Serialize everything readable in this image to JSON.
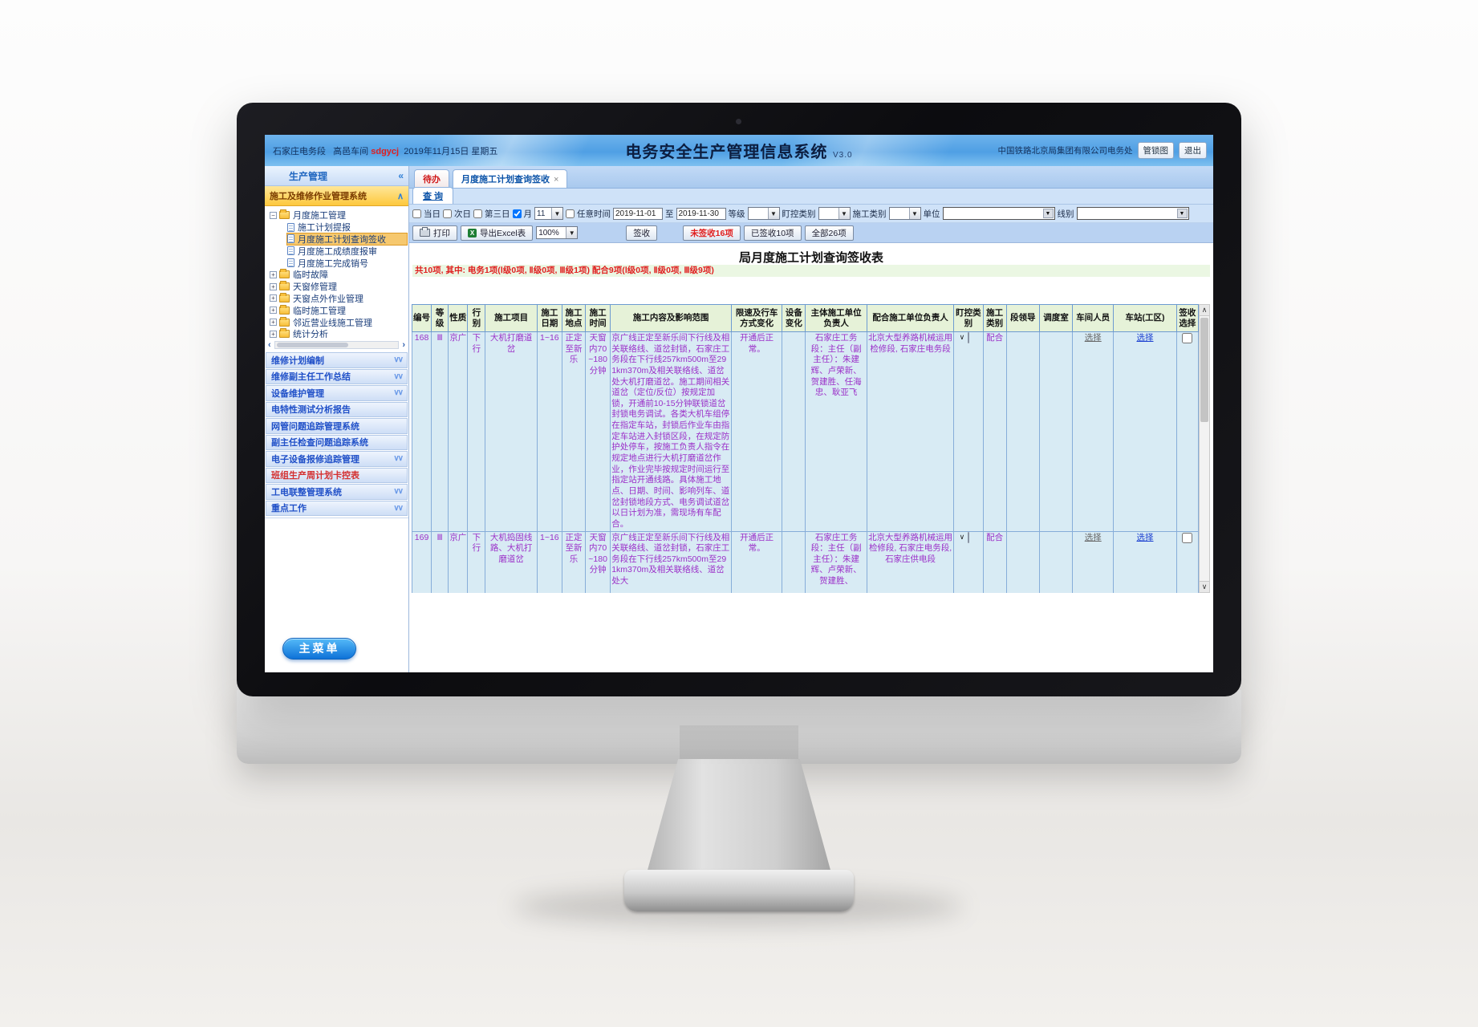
{
  "chrome": {
    "station": "石家庄电务段",
    "workshop": "高邑车间",
    "user": "sdgycj",
    "date": "2019年11月15日 星期五",
    "title": "电务安全生产管理信息系统",
    "version": "V3.0",
    "org": "中国铁路北京局集团有限公司电务处",
    "lock_button": "管锁图",
    "exit_button": "退出"
  },
  "sidebar": {
    "panel_title": "生产管理",
    "collapse_icon": "«",
    "system_title": "施工及维修作业管理系统",
    "tree": [
      {
        "label": "月度施工管理",
        "expanded": true,
        "children": [
          {
            "label": "施工计划提报"
          },
          {
            "label": "月度施工计划查询签收",
            "selected": true
          },
          {
            "label": "月度施工成绩度报审"
          },
          {
            "label": "月度施工完成销号"
          }
        ]
      },
      {
        "label": "临时故障"
      },
      {
        "label": "天窗修管理"
      },
      {
        "label": "天窗点外作业管理"
      },
      {
        "label": "临时施工管理"
      },
      {
        "label": "邻近营业线施工管理"
      },
      {
        "label": "统计分析"
      }
    ],
    "accordion": [
      {
        "label": "维修计划编制",
        "chevron": true
      },
      {
        "label": "维修副主任工作总结",
        "chevron": true
      },
      {
        "label": "设备维护管理",
        "chevron": true
      },
      {
        "label": "电特性测试分析报告",
        "chevron": false
      },
      {
        "label": "网管问题追踪管理系统",
        "chevron": false
      },
      {
        "label": "副主任检查问题追踪系统",
        "chevron": false
      },
      {
        "label": "电子设备报修追踪管理",
        "chevron": true
      },
      {
        "label": "班组生产周计划卡控表",
        "chevron": false,
        "red": true
      },
      {
        "label": "工电联整管理系统",
        "chevron": true
      },
      {
        "label": "重点工作",
        "chevron": true
      }
    ],
    "main_menu_button": "主菜单"
  },
  "tabs": {
    "todo": "待办",
    "active": "月度施工计划查询签收",
    "close": "×",
    "query": "查 询"
  },
  "filters": {
    "today": "当日",
    "next_day": "次日",
    "third_day": "第三日",
    "month": "月",
    "month_value": "11",
    "any_time": "任意时间",
    "date_from": "2019-11-01",
    "to": "至",
    "date_to": "2019-11-30",
    "level": "等级",
    "watch_type": "盯控类别",
    "const_type": "施工类别",
    "unit": "单位",
    "line": "线别"
  },
  "toolbar": {
    "print": "打印",
    "export_excel": "导出Excel表",
    "zoom": "100%",
    "sign": "签收",
    "unsigned": "未签收16项",
    "signed": "已签收10项",
    "all": "全部26项"
  },
  "report": {
    "title": "局月度施工计划查询签收表",
    "summary": "共10项, 其中: 电务1项(Ⅰ级0项, Ⅱ级0项, Ⅲ级1项)  配合9项(Ⅰ级0项, Ⅱ级0项, Ⅲ级9项)",
    "columns": [
      "编号",
      "等级",
      "性质",
      "行别",
      "施工项目",
      "施工日期",
      "施工地点",
      "施工时间",
      "施工内容及影响范围",
      "限速及行车方式变化",
      "设备变化",
      "主体施工单位负责人",
      "配合施工单位负责人",
      "盯控类别",
      "施工类别",
      "段领导",
      "调度室",
      "车间人员",
      "车站(工区)",
      "签收选择"
    ],
    "select_label": "选择",
    "rows": [
      {
        "no": "168",
        "level": "Ⅲ",
        "nature": "京广",
        "direction": "下行",
        "project": "大机打磨道岔",
        "date": "1~16",
        "place": "正定至新乐",
        "time": "天窗内70~180分钟",
        "content": "京广线正定至新乐间下行线及相关联络线、道岔封锁，石家庄工务段在下行线257km500m至291km370m及相关联络线、道岔处大机打磨道岔。施工期间相关道岔（定位/反位）按规定加锁，开通前10-15分钟联锁道岔封锁电务调试。各类大机车组停在指定车站，封锁后作业车由指定车站进入封锁区段，在规定防护处停车，按施工负责人指令在规定地点进行大机打磨道岔作业，作业完毕按规定时间运行至指定站开通线路。具体施工地点、日期、时间、影响列车、道岔封锁地段方式、电务调试道岔以日计划为准，需现场有车配合。",
        "speed_change": "开通后正常。",
        "equipment_change": "",
        "owner": "石家庄工务段：主任（副主任）：朱建辉、卢荣新、贺建胜、任海忠、耿亚飞",
        "partner": "北京大型养路机械运用检修段, 石家庄电务段",
        "const_type": "配合",
        "leader": "",
        "dispatch": "",
        "workshop_link": "选择",
        "station_link": "选择",
        "signed": false
      },
      {
        "no": "169",
        "level": "Ⅲ",
        "nature": "京广",
        "direction": "下行",
        "project": "大机捣固线路、大机打磨道岔",
        "date": "1~16",
        "place": "正定至新乐",
        "time": "天窗内70~180分钟",
        "content": "京广线正定至新乐间下行线及相关联络线、道岔封锁，石家庄工务段在下行线257km500m至291km370m及相关联络线、道岔处大",
        "speed_change": "开通后正常。",
        "equipment_change": "",
        "owner": "石家庄工务段：主任（副主任）：朱建辉、卢荣新、贺建胜、",
        "partner": "北京大型养路机械运用检修段, 石家庄电务段, 石家庄供电段",
        "const_type": "配合",
        "leader": "",
        "dispatch": "",
        "workshop_link": "选择",
        "station_link": "选择",
        "signed": false
      }
    ]
  },
  "colors": {
    "header_blue": "#4f9fe4",
    "accent_yellow": "#fdc83d",
    "table_header_green": "#e6f2d8",
    "table_body_blue": "#d8ebf4",
    "table_text_purple": "#9b30c8",
    "alert_red": "#e02020",
    "link_blue": "#1a3fd0"
  }
}
